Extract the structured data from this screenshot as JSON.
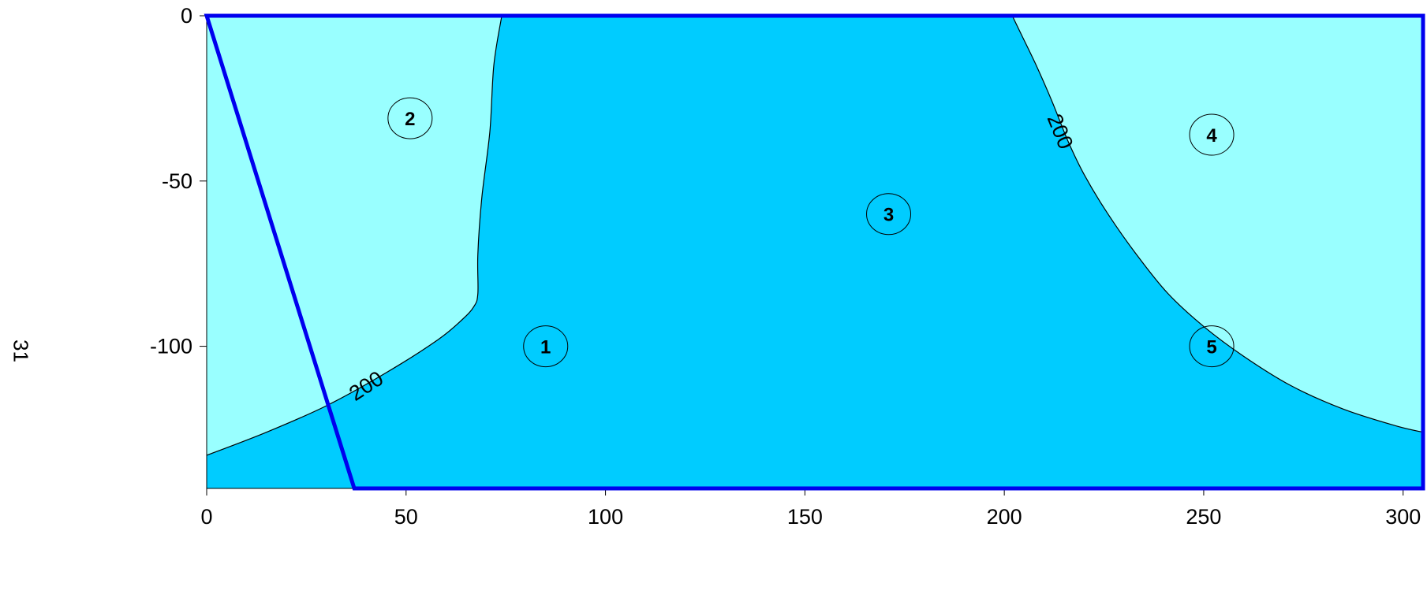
{
  "page": {
    "number": "31"
  },
  "chart_data": {
    "type": "contour",
    "title": "",
    "xlabel": "",
    "ylabel": "",
    "xlim": [
      0,
      305
    ],
    "ylim": [
      -143,
      0
    ],
    "xticks": [
      0,
      50,
      100,
      150,
      200,
      250,
      300
    ],
    "yticks": [
      0,
      -50,
      -100
    ],
    "colors": {
      "above_level": "#00ccff",
      "below_level": "#99ffff",
      "boundary": "#0000ee",
      "contour_line": "#000000"
    },
    "contour": {
      "level": "200",
      "left_branch": [
        [
          0,
          -133
        ],
        [
          15,
          -126
        ],
        [
          30,
          -118
        ],
        [
          45,
          -108
        ],
        [
          58,
          -98
        ],
        [
          64,
          -92
        ],
        [
          67,
          -88
        ],
        [
          68,
          -84
        ],
        [
          68,
          -72
        ],
        [
          69,
          -55
        ],
        [
          71,
          -35
        ],
        [
          72,
          -15
        ],
        [
          74,
          0
        ]
      ],
      "right_branch": [
        [
          202,
          0
        ],
        [
          204,
          -5
        ],
        [
          208,
          -15
        ],
        [
          212,
          -26
        ],
        [
          216,
          -38
        ],
        [
          220,
          -48
        ],
        [
          226,
          -60
        ],
        [
          233,
          -72
        ],
        [
          241,
          -84
        ],
        [
          250,
          -94
        ],
        [
          260,
          -103
        ],
        [
          272,
          -112
        ],
        [
          285,
          -119
        ],
        [
          298,
          -124
        ],
        [
          305,
          -126
        ]
      ],
      "labels": [
        {
          "text": "200",
          "x": 40,
          "y": -112,
          "angle": -33
        },
        {
          "text": "200",
          "x": 214,
          "y": -35,
          "angle": 68
        }
      ]
    },
    "boundary": [
      [
        0,
        0
      ],
      [
        305,
        0
      ],
      [
        305,
        -143
      ],
      [
        37,
        -143
      ]
    ],
    "markers": [
      {
        "label": "2",
        "x": 51,
        "y": -31
      },
      {
        "label": "4",
        "x": 252,
        "y": -36
      },
      {
        "label": "3",
        "x": 171,
        "y": -60
      },
      {
        "label": "1",
        "x": 85,
        "y": -100
      },
      {
        "label": "5",
        "x": 252,
        "y": -100
      }
    ]
  }
}
